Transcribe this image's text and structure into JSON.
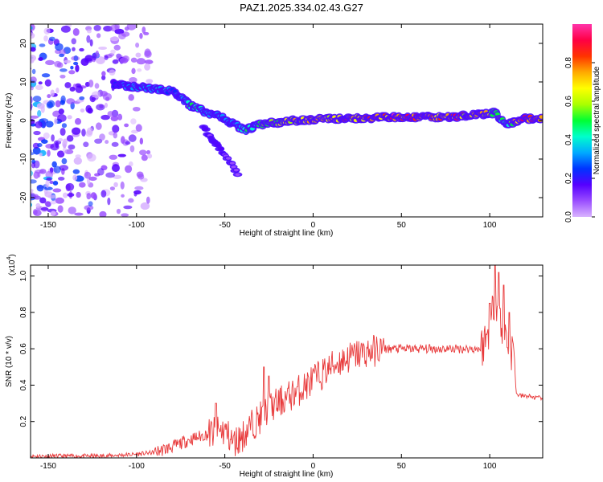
{
  "title": "PAZ1.2025.334.02.43.G27",
  "chart_data": [
    {
      "type": "heatmap",
      "xlabel": "Height of straight line (km)",
      "ylabel": "Frequency (Hz)",
      "xlim": [
        -160,
        130
      ],
      "ylim": [
        -25,
        25
      ],
      "xticks": [
        -150,
        -100,
        -50,
        0,
        50,
        100
      ],
      "xtick_labels": [
        "-150",
        "-100",
        "-50",
        "0",
        "50",
        "100"
      ],
      "yticks": [
        20,
        10,
        0,
        -10,
        -20
      ],
      "ytick_labels": [
        "20",
        "10",
        "0",
        "-10",
        "-20"
      ],
      "colorbar": {
        "label": "Normalized spectral amplitude",
        "range": [
          0,
          1
        ],
        "ticks": [
          0.0,
          0.2,
          0.4,
          0.6,
          0.8
        ],
        "tick_labels": [
          "0.0",
          "0.2",
          "0.4",
          "0.6",
          "0.8"
        ],
        "colors": [
          "#d9b3ff",
          "#9a4dff",
          "#5500ff",
          "#0033ff",
          "#00aaff",
          "#00ffcc",
          "#00ff33",
          "#aaff00",
          "#ffff00",
          "#ffaa00",
          "#ff3300",
          "#ff0044",
          "#ff33aa"
        ]
      },
      "ridge": [
        {
          "x": -113,
          "freq": 9.5,
          "amp": 0.25
        },
        {
          "x": -105,
          "freq": 9.0,
          "amp": 0.35
        },
        {
          "x": -95,
          "freq": 8.5,
          "amp": 0.38
        },
        {
          "x": -85,
          "freq": 8.0,
          "amp": 0.4
        },
        {
          "x": -78,
          "freq": 7.5,
          "amp": 0.3
        },
        {
          "x": -70,
          "freq": 4.0,
          "amp": 0.45
        },
        {
          "x": -60,
          "freq": 2.0,
          "amp": 0.4
        },
        {
          "x": -52,
          "freq": 1.0,
          "amp": 0.35
        },
        {
          "x": -45,
          "freq": -1.0,
          "amp": 0.35
        },
        {
          "x": -38,
          "freq": -2.5,
          "amp": 0.45
        },
        {
          "x": -30,
          "freq": -1.0,
          "amp": 0.5
        },
        {
          "x": -20,
          "freq": -0.5,
          "amp": 0.6
        },
        {
          "x": -10,
          "freq": 0.0,
          "amp": 0.7
        },
        {
          "x": 0,
          "freq": 0.3,
          "amp": 0.75
        },
        {
          "x": 20,
          "freq": 0.5,
          "amp": 0.8
        },
        {
          "x": 40,
          "freq": 0.8,
          "amp": 0.9
        },
        {
          "x": 60,
          "freq": 0.8,
          "amp": 0.9
        },
        {
          "x": 80,
          "freq": 1.0,
          "amp": 0.85
        },
        {
          "x": 95,
          "freq": 1.5,
          "amp": 0.75
        },
        {
          "x": 103,
          "freq": 2.0,
          "amp": 0.55
        },
        {
          "x": 110,
          "freq": -1.0,
          "amp": 0.45
        },
        {
          "x": 118,
          "freq": 0.5,
          "amp": 0.95
        },
        {
          "x": 130,
          "freq": 0.5,
          "amp": 0.95
        }
      ],
      "branch": [
        {
          "x": -62,
          "freq": -2,
          "amp": 0.15
        },
        {
          "x": -55,
          "freq": -6,
          "amp": 0.15
        },
        {
          "x": -48,
          "freq": -10,
          "amp": 0.12
        },
        {
          "x": -42,
          "freq": -14,
          "amp": 0.08
        }
      ]
    },
    {
      "type": "line",
      "xlabel": "Height of straight line (km)",
      "ylabel": "SNR (10 * v/v)",
      "y_multiplier": "(x10",
      "y_multiplier_exp": "4",
      "y_multiplier_close": ")",
      "xlim": [
        -160,
        130
      ],
      "ylim": [
        0,
        1.06
      ],
      "xticks": [
        -150,
        -100,
        -50,
        0,
        50,
        100
      ],
      "xtick_labels": [
        "-150",
        "-100",
        "-50",
        "0",
        "50",
        "100"
      ],
      "yticks": [
        0.2,
        0.4,
        0.6,
        0.8,
        1.0
      ],
      "ytick_labels": [
        "0.2",
        "0.4",
        "0.6",
        "0.8",
        "1.0"
      ],
      "color": "#e8393a",
      "series": [
        {
          "x": [
            -160,
            -140,
            -120,
            -100,
            -90,
            -80,
            -70,
            -60,
            -50,
            -45,
            -40,
            -35,
            -30,
            -25,
            -20,
            -15,
            -10,
            -5,
            0,
            5,
            10,
            15,
            20,
            25,
            30,
            35,
            40,
            45,
            50,
            55,
            60,
            65,
            70,
            75,
            80,
            85,
            90,
            95,
            100,
            103,
            106,
            110,
            114,
            115,
            118,
            122,
            126,
            130
          ],
          "y": [
            0.01,
            0.01,
            0.01,
            0.02,
            0.03,
            0.06,
            0.1,
            0.13,
            0.15,
            0.08,
            0.12,
            0.18,
            0.22,
            0.27,
            0.3,
            0.33,
            0.36,
            0.39,
            0.43,
            0.46,
            0.5,
            0.53,
            0.55,
            0.57,
            0.58,
            0.59,
            0.6,
            0.6,
            0.6,
            0.6,
            0.6,
            0.6,
            0.6,
            0.6,
            0.6,
            0.6,
            0.6,
            0.6,
            0.7,
            0.9,
            0.75,
            0.65,
            0.55,
            0.35,
            0.34,
            0.34,
            0.33,
            0.33
          ]
        }
      ],
      "peaks": [
        {
          "x": -55,
          "y": 0.3
        },
        {
          "x": -28,
          "y": 0.5
        },
        {
          "x": -25,
          "y": 0.45
        },
        {
          "x": 100,
          "y": 0.85
        },
        {
          "x": 103,
          "y": 1.06
        },
        {
          "x": 105,
          "y": 1.02
        },
        {
          "x": 108,
          "y": 0.95
        },
        {
          "x": 111,
          "y": 0.8
        }
      ]
    }
  ]
}
